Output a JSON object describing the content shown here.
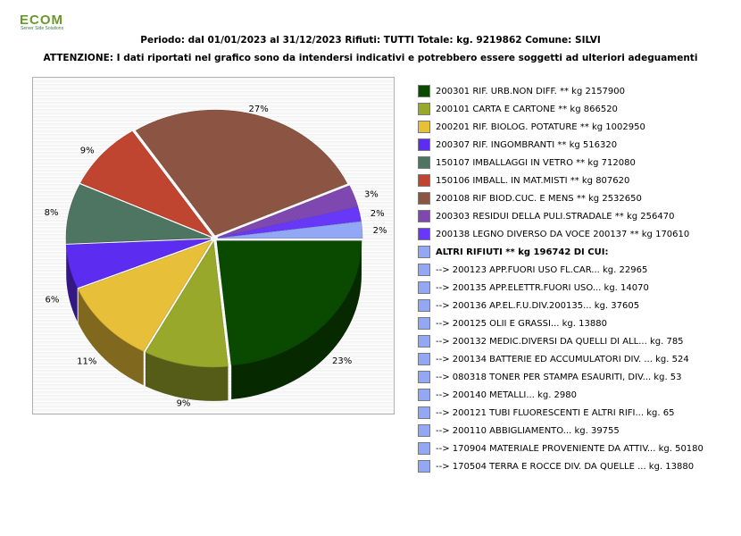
{
  "logo": {
    "text": "ECOM",
    "subtitle": "Server Side Solutions"
  },
  "header": {
    "line1": "Periodo: dal 01/01/2023 al 31/12/2023 Rifiuti: TUTTI   Totale: kg. 9219862    Comune: SILVI",
    "line2": "ATTENZIONE: I dati riportati nel grafico sono da intendersi indicativi e potrebbero essere soggetti ad ulteriori adeguamenti"
  },
  "chart_data": {
    "type": "pie",
    "style": "3d",
    "grid": true,
    "legend_position": "right",
    "slices": [
      {
        "legend": "200301 RIF. URB.NON DIFF. ** kg 2157900",
        "value": 2157900,
        "label": "23%",
        "color": "#0a4a00"
      },
      {
        "legend": "200101 CARTA E CARTONE ** kg 866520",
        "value": 866520,
        "label": "9%",
        "color": "#98a82a"
      },
      {
        "legend": "200201 RIF. BIOLOG. POTATURE ** kg 1002950",
        "value": 1002950,
        "label": "11%",
        "color": "#e8bf38"
      },
      {
        "legend": "200307 RIF. INGOMBRANTI ** kg 516320",
        "value": 516320,
        "label": "6%",
        "color": "#5c2cf0"
      },
      {
        "legend": "150107 IMBALLAGGI IN VETRO ** kg 712080",
        "value": 712080,
        "label": "8%",
        "color": "#4e7462"
      },
      {
        "legend": "150106 IMBALL. IN MAT.MISTI ** kg 807620",
        "value": 807620,
        "label": "9%",
        "color": "#c04530"
      },
      {
        "legend": "200108 RIF BIOD.CUC. E MENS ** kg 2532650",
        "value": 2532650,
        "label": "27%",
        "color": "#8c5543"
      },
      {
        "legend": "200303 RESIDUI DELLA PULI.STRADALE ** kg 256470",
        "value": 256470,
        "label": "3%",
        "color": "#7e48b0"
      },
      {
        "legend": "200138 LEGNO DIVERSO DA VOCE 200137 ** kg 170610",
        "value": 170610,
        "label": "2%",
        "color": "#6838f8"
      },
      {
        "legend": "ALTRI RIFIUTI ** kg 196742 DI CUI:",
        "value": 196742,
        "label": "2%",
        "color": "#92a8f4",
        "bold": true
      }
    ],
    "altri_detail": [
      {
        "legend": "-->  200123 APP.FUORI USO FL.CAR... kg. 22965",
        "value": 22965
      },
      {
        "legend": "-->  200135 APP.ELETTR.FUORI USO... kg. 14070",
        "value": 14070
      },
      {
        "legend": "-->  200136 AP.EL.F.U.DIV.200135... kg. 37605",
        "value": 37605
      },
      {
        "legend": "-->  200125 OLII E GRASSI... kg. 13880",
        "value": 13880
      },
      {
        "legend": "-->  200132 MEDIC.DIVERSI DA QUELLI DI ALL... kg. 785",
        "value": 785
      },
      {
        "legend": "-->  200134 BATTERIE ED ACCUMULATORI DIV. ... kg. 524",
        "value": 524
      },
      {
        "legend": "-->  080318 TONER PER STAMPA ESAURITI, DIV... kg. 53",
        "value": 53
      },
      {
        "legend": "-->  200140 METALLI... kg. 2980",
        "value": 2980
      },
      {
        "legend": "-->  200121 TUBI FLUORESCENTI E ALTRI RIFI... kg. 65",
        "value": 65
      },
      {
        "legend": "-->  200110 ABBIGLIAMENTO... kg. 39755",
        "value": 39755
      },
      {
        "legend": "-->  170904 MATERIALE PROVENIENTE DA ATTIV... kg. 50180",
        "value": 50180
      },
      {
        "legend": "-->  170504 TERRA E ROCCE  DIV. DA QUELLE ... kg. 13880",
        "value": 13880
      }
    ],
    "detail_color": "#92a8f4"
  }
}
